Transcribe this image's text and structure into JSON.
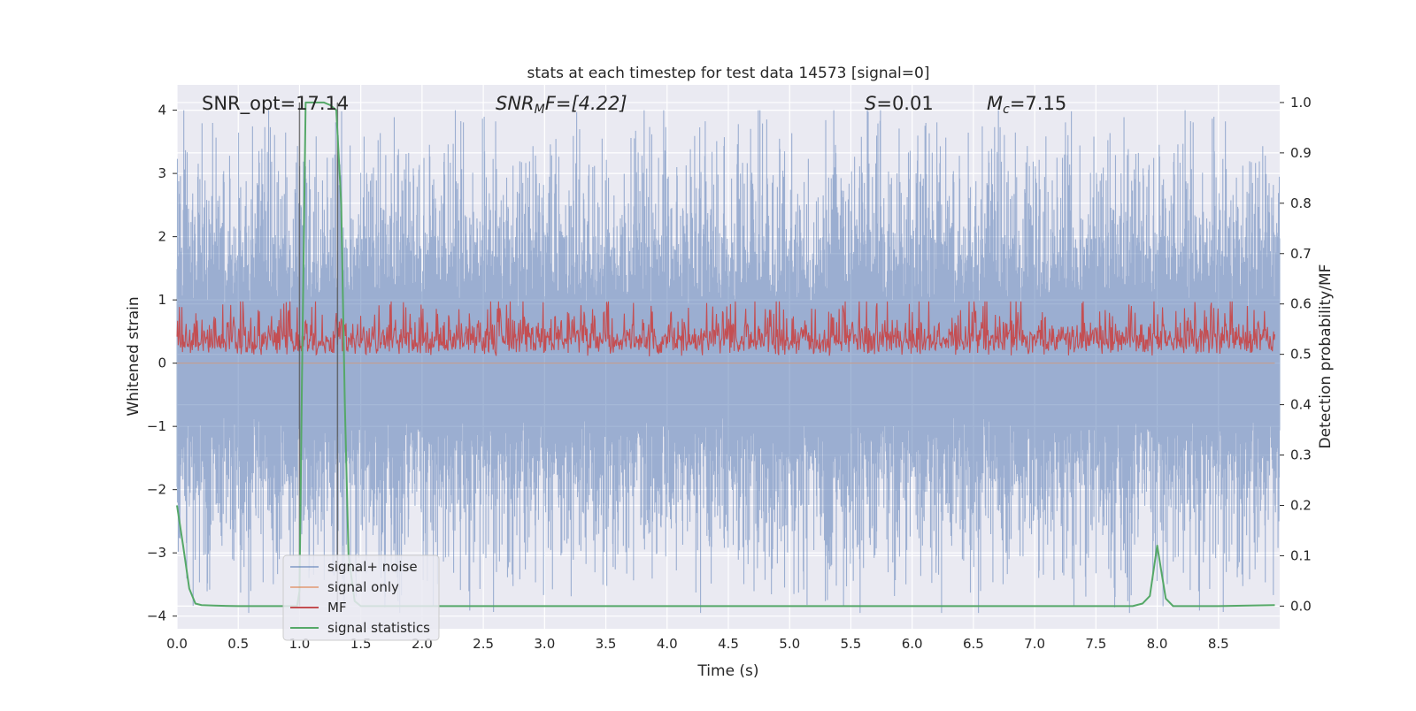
{
  "chart_data": {
    "type": "line",
    "title": "stats at each timestep for test data 14573 [signal=0]",
    "xlabel": "Time (s)",
    "ylabel_left": "Whitened strain",
    "ylabel_right": "Detection probability/MF",
    "xlim": [
      0.0,
      9.0
    ],
    "ylim_left": [
      -4.2,
      4.4
    ],
    "ylim_right": [
      -0.045,
      1.035
    ],
    "x_ticks": [
      "0.0",
      "0.5",
      "1.0",
      "1.5",
      "2.0",
      "2.5",
      "3.0",
      "3.5",
      "4.0",
      "4.5",
      "5.0",
      "5.5",
      "6.0",
      "6.5",
      "7.0",
      "7.5",
      "8.0",
      "8.5"
    ],
    "y_ticks_left": [
      "4",
      "3",
      "2",
      "1",
      "0",
      "−1",
      "−2",
      "−3",
      "−4"
    ],
    "y_ticks_right": [
      "1.0",
      "0.9",
      "0.8",
      "0.7",
      "0.6",
      "0.5",
      "0.4",
      "0.3",
      "0.2",
      "0.1",
      "0.0"
    ],
    "grid": true,
    "legend_position": "lower-left",
    "annotations": {
      "snr_opt": "SNR_opt=17.14",
      "snr_mf_main": "SNR",
      "snr_mf_sub": "M",
      "snr_mf_rest": "F=[4.22]",
      "s_main": "S",
      "s_rest": "=0.01",
      "mc_main": "M",
      "mc_sub": "c",
      "mc_rest": "=7.15"
    },
    "vertical_lines_x": [
      1.0,
      1.31
    ],
    "series": [
      {
        "name": "signal+ noise",
        "axis": "left",
        "color": "#4c72b0",
        "description_values": "dense whitened noise roughly between -3.8 and 4.0",
        "envelope_typical": [
          -2.0,
          2.3
        ]
      },
      {
        "name": "signal only",
        "axis": "left",
        "color": "#dd8452",
        "values_note": "flat at zero (no signal injected)"
      },
      {
        "name": "MF",
        "axis": "right",
        "color": "#c44e52",
        "typical_range": [
          0.49,
          0.6
        ]
      },
      {
        "name": "signal statistics",
        "axis": "right",
        "color": "#55a868",
        "x": [
          0.0,
          0.05,
          0.1,
          0.15,
          0.2,
          0.3,
          0.5,
          0.9,
          0.98,
          1.0,
          1.02,
          1.05,
          1.1,
          1.2,
          1.25,
          1.3,
          1.34,
          1.37,
          1.4,
          1.45,
          1.5,
          2.0,
          7.8,
          7.88,
          7.94,
          8.0,
          8.07,
          8.13,
          8.2,
          8.5,
          8.96
        ],
        "values": [
          0.2,
          0.12,
          0.035,
          0.005,
          0.002,
          0.001,
          0.0,
          0.0,
          0.0,
          0.03,
          0.45,
          1.0,
          1.0,
          1.0,
          0.995,
          0.985,
          0.8,
          0.4,
          0.1,
          0.01,
          0.0,
          0.0,
          0.0,
          0.005,
          0.02,
          0.12,
          0.015,
          0.0,
          0.0,
          0.0,
          0.002
        ]
      }
    ]
  }
}
